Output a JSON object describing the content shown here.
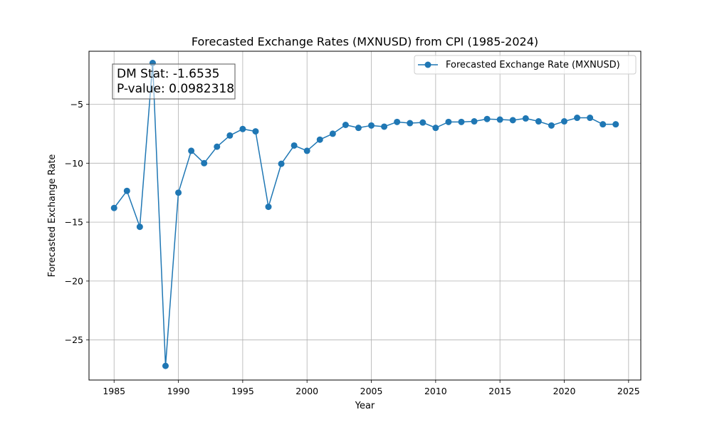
{
  "chart_data": {
    "type": "line",
    "title": "Forecasted Exchange Rates (MXNUSD) from CPI (1985-2024)",
    "xlabel": "Year",
    "ylabel": "Forecasted Exchange Rate",
    "xlim": [
      1983.05,
      2025.95
    ],
    "ylim": [
      -28.4,
      -0.5
    ],
    "x_ticks": [
      1985,
      1990,
      1995,
      2000,
      2005,
      2010,
      2015,
      2020,
      2025
    ],
    "y_ticks": [
      -25,
      -20,
      -15,
      -10,
      -5
    ],
    "grid": true,
    "legend_position": "top-right",
    "series": [
      {
        "name": "Forecasted Exchange Rate (MXNUSD)",
        "color": "#1f77b4",
        "x": [
          1985,
          1986,
          1987,
          1988,
          1989,
          1990,
          1991,
          1992,
          1993,
          1994,
          1995,
          1996,
          1997,
          1998,
          1999,
          2000,
          2001,
          2002,
          2003,
          2004,
          2005,
          2006,
          2007,
          2008,
          2009,
          2010,
          2011,
          2012,
          2013,
          2014,
          2015,
          2016,
          2017,
          2018,
          2019,
          2020,
          2021,
          2022,
          2023,
          2024
        ],
        "y": [
          -13.8,
          -12.35,
          -15.4,
          -1.5,
          -27.2,
          -12.5,
          -8.95,
          -10.0,
          -8.6,
          -7.65,
          -7.1,
          -7.3,
          -13.7,
          -10.05,
          -8.5,
          -8.95,
          -8.0,
          -7.5,
          -6.75,
          -7.0,
          -6.8,
          -6.9,
          -6.5,
          -6.6,
          -6.55,
          -7.0,
          -6.5,
          -6.5,
          -6.45,
          -6.25,
          -6.3,
          -6.35,
          -6.2,
          -6.45,
          -6.8,
          -6.45,
          -6.15,
          -6.15,
          -6.7,
          -6.7
        ]
      }
    ],
    "annotation": {
      "line1": "DM Stat: -1.6535",
      "line2": "P-value: 0.0982318"
    }
  }
}
